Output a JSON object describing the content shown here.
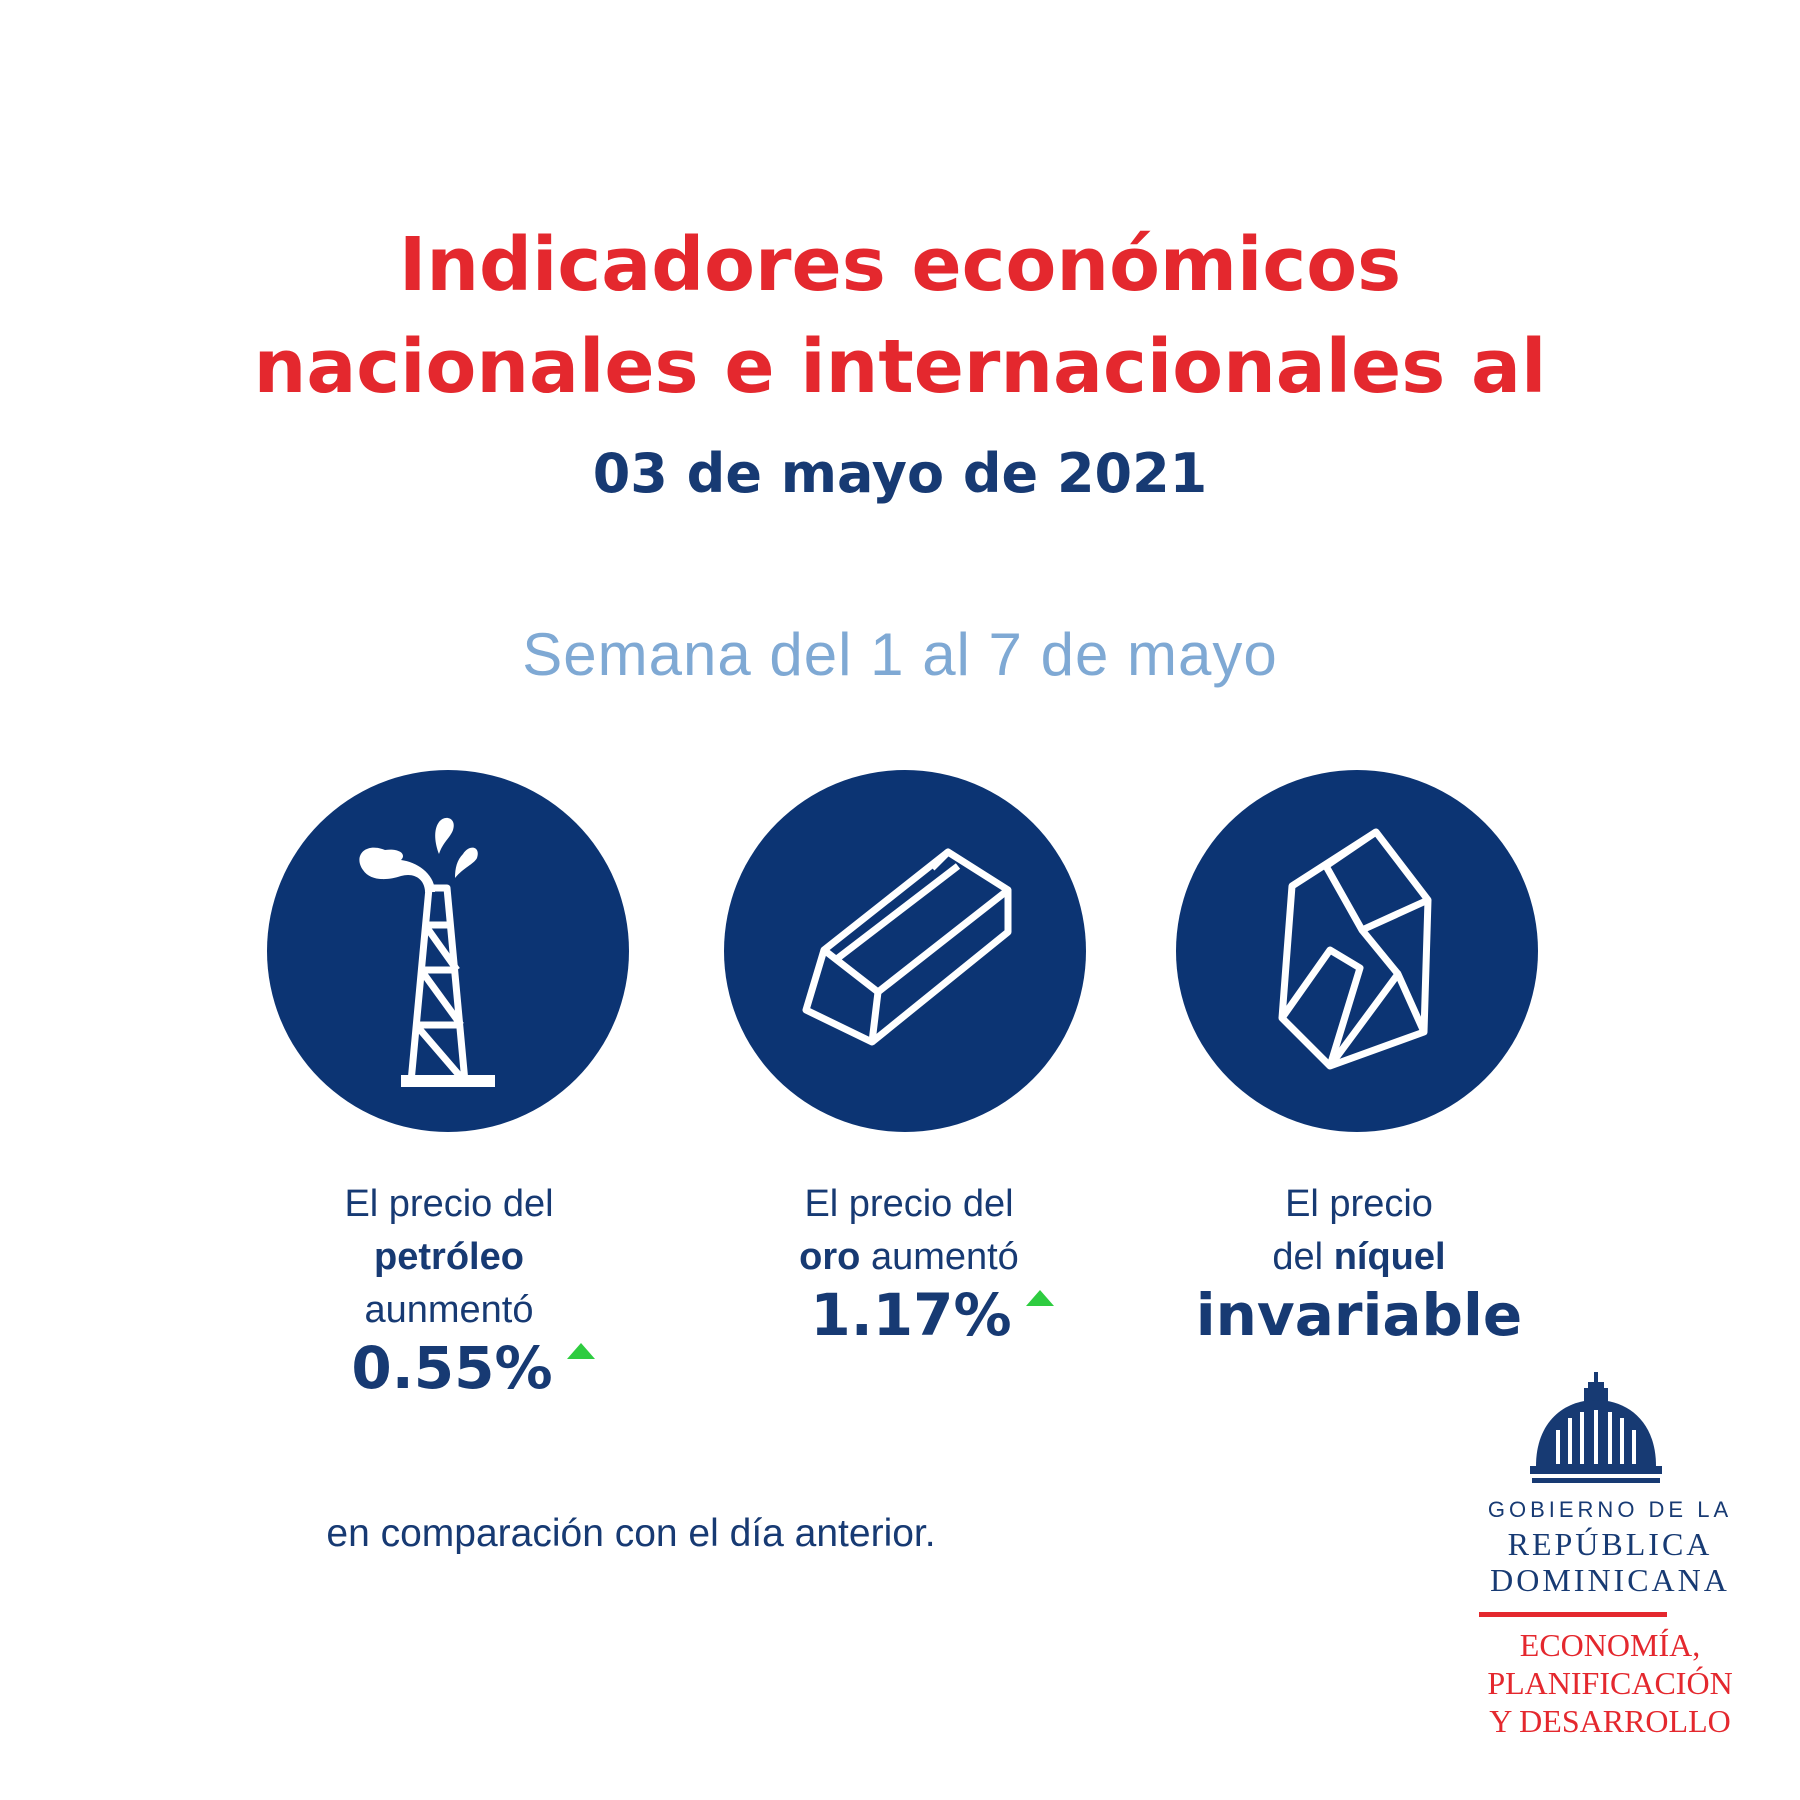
{
  "header": {
    "title_line1": "Indicadores económicos",
    "title_line2": "nacionales e internacionales al",
    "date": "03 de mayo de 2021",
    "week": "Semana del 1 al 7 de mayo"
  },
  "indicators": [
    {
      "icon": "oil-derrick-icon",
      "line1": "El precio del",
      "bold": "petróleo",
      "line3": "aunmentó",
      "value": "0.55%",
      "trend": "up"
    },
    {
      "icon": "gold-bar-icon",
      "line1": "El precio del",
      "bold": "oro",
      "rest": "aumentó",
      "value": "1.17%",
      "trend": "up"
    },
    {
      "icon": "nickel-ore-icon",
      "line1": "El precio",
      "pre": "del",
      "bold": "níquel",
      "value": "invariable",
      "trend": "unchanged"
    }
  ],
  "footer": {
    "note": "en comparación con el día anterior."
  },
  "logo": {
    "line1": "GOBIERNO DE LA",
    "line2": "REPÚBLICA",
    "line3": "DOMINICANA",
    "ministry1": "ECONOMÍA,",
    "ministry2": "PLANIFICACIÓN",
    "ministry3": "Y DESARROLLO"
  },
  "colors": {
    "title_red": "#e4282e",
    "navy": "#173a73",
    "circle_blue": "#0c3473",
    "light_blue": "#7fa9d4",
    "up_green": "#2ecc40"
  }
}
